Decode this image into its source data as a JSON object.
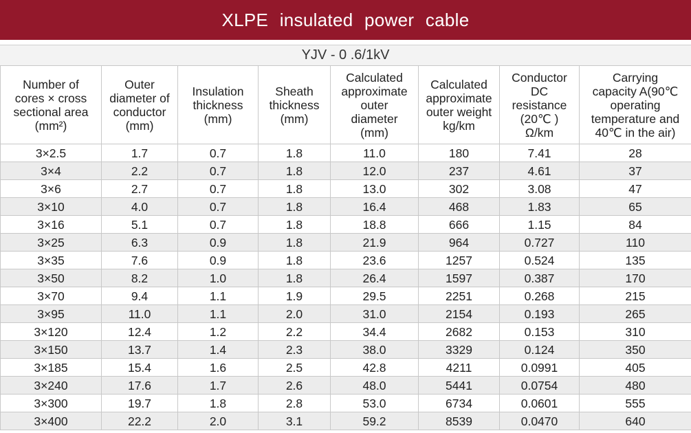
{
  "title": "XLPE  insulated  power  cable",
  "subtitle": "YJV - 0 .6/1kV",
  "headers": [
    [
      "Number of",
      "cores × cross",
      "sectional area",
      "(mm²)"
    ],
    [
      "Outer",
      "diameter of",
      "conductor",
      "(mm)"
    ],
    [
      "Insulation",
      "thickness",
      "(mm)"
    ],
    [
      "Sheath",
      "thickness",
      "(mm)"
    ],
    [
      "Calculated",
      "approximate",
      "outer",
      "diameter",
      "(mm)"
    ],
    [
      "Calculated",
      "approximate",
      "outer weight",
      "kg/km"
    ],
    [
      "Conductor",
      "DC",
      "resistance",
      "(20℃ )",
      "Ω/km"
    ],
    [
      "Carrying",
      "capacity A(90℃",
      "operating",
      "temperature and",
      "40℃ in the air)"
    ]
  ],
  "rows": [
    [
      "3×2.5",
      "1.7",
      "0.7",
      "1.8",
      "11.0",
      "180",
      "7.41",
      "28"
    ],
    [
      "3×4",
      "2.2",
      "0.7",
      "1.8",
      "12.0",
      "237",
      "4.61",
      "37"
    ],
    [
      "3×6",
      "2.7",
      "0.7",
      "1.8",
      "13.0",
      "302",
      "3.08",
      "47"
    ],
    [
      "3×10",
      "4.0",
      "0.7",
      "1.8",
      "16.4",
      "468",
      "1.83",
      "65"
    ],
    [
      "3×16",
      "5.1",
      "0.7",
      "1.8",
      "18.8",
      "666",
      "1.15",
      "84"
    ],
    [
      "3×25",
      "6.3",
      "0.9",
      "1.8",
      "21.9",
      "964",
      "0.727",
      "110"
    ],
    [
      "3×35",
      "7.6",
      "0.9",
      "1.8",
      "23.6",
      "1257",
      "0.524",
      "135"
    ],
    [
      "3×50",
      "8.2",
      "1.0",
      "1.8",
      "26.4",
      "1597",
      "0.387",
      "170"
    ],
    [
      "3×70",
      "9.4",
      "1.1",
      "1.9",
      "29.5",
      "2251",
      "0.268",
      "215"
    ],
    [
      "3×95",
      "11.0",
      "1.1",
      "2.0",
      "31.0",
      "2154",
      "0.193",
      "265"
    ],
    [
      "3×120",
      "12.4",
      "1.2",
      "2.2",
      "34.4",
      "2682",
      "0.153",
      "310"
    ],
    [
      "3×150",
      "13.7",
      "1.4",
      "2.3",
      "38.0",
      "3329",
      "0.124",
      "350"
    ],
    [
      "3×185",
      "15.4",
      "1.6",
      "2.5",
      "42.8",
      "4211",
      "0.0991",
      "405"
    ],
    [
      "3×240",
      "17.6",
      "1.7",
      "2.6",
      "48.0",
      "5441",
      "0.0754",
      "480"
    ],
    [
      "3×300",
      "19.7",
      "1.8",
      "2.8",
      "53.0",
      "6734",
      "0.0601",
      "555"
    ],
    [
      "3×400",
      "22.2",
      "2.0",
      "3.1",
      "59.2",
      "8539",
      "0.0470",
      "640"
    ]
  ]
}
